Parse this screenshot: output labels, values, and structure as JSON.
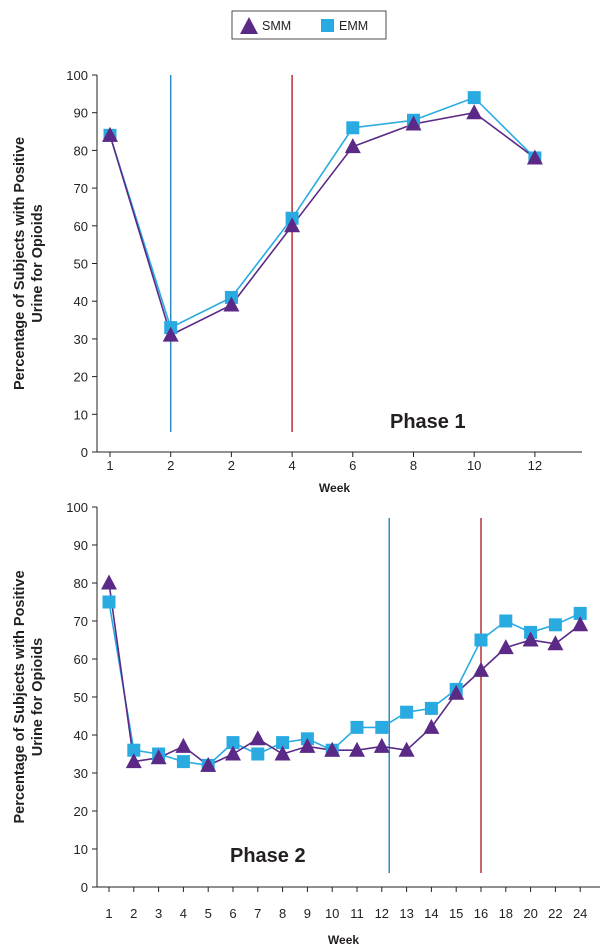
{
  "legend": {
    "items": [
      {
        "label": "SMM",
        "marker": "triangle",
        "color": "#5b2a86"
      },
      {
        "label": "EMM",
        "marker": "square",
        "color": "#29abe2"
      }
    ]
  },
  "chart_data": [
    {
      "type": "line",
      "title": "Phase 1",
      "xlabel": "Week",
      "ylabel": [
        "Percentage of Subjects with Positive",
        "Urine for Opioids"
      ],
      "categories": [
        "1",
        "2",
        "2",
        "4",
        "6",
        "8",
        "10",
        "12"
      ],
      "ylim": [
        0,
        100
      ],
      "yticks": [
        0,
        10,
        20,
        30,
        40,
        50,
        60,
        70,
        80,
        90,
        100
      ],
      "grid": false,
      "legend_position": "top-center",
      "series": [
        {
          "name": "SMM",
          "marker": "triangle",
          "color": "#5b2a86",
          "values": [
            84,
            31,
            39,
            60,
            81,
            87,
            90,
            78
          ]
        },
        {
          "name": "EMM",
          "marker": "square",
          "color": "#29abe2",
          "values": [
            84,
            33,
            41,
            62,
            86,
            88,
            94,
            78
          ]
        }
      ],
      "vertical_lines": [
        {
          "at_category_index": 1,
          "color": "#2b8cc4"
        },
        {
          "at_category_index": 3,
          "color": "#b5303a"
        }
      ]
    },
    {
      "type": "line",
      "title": "Phase 2",
      "xlabel": "Week",
      "ylabel": [
        "Percentage of Subjects with Positive",
        "Urine for Opioids"
      ],
      "categories": [
        "1",
        "2",
        "3",
        "4",
        "5",
        "6",
        "7",
        "8",
        "9",
        "10",
        "11",
        "12",
        "13",
        "14",
        "15",
        "16",
        "18",
        "20",
        "22",
        "24"
      ],
      "ylim": [
        0,
        100
      ],
      "yticks": [
        0,
        10,
        20,
        30,
        40,
        50,
        60,
        70,
        80,
        90,
        100
      ],
      "grid": false,
      "series": [
        {
          "name": "SMM",
          "marker": "triangle",
          "color": "#5b2a86",
          "values": [
            80,
            33,
            34,
            37,
            32,
            35,
            39,
            35,
            37,
            36,
            36,
            37,
            36,
            42,
            51,
            57,
            63,
            65,
            64,
            69
          ]
        },
        {
          "name": "EMM",
          "marker": "square",
          "color": "#29abe2",
          "values": [
            75,
            36,
            35,
            33,
            32,
            38,
            35,
            38,
            39,
            36,
            42,
            42,
            46,
            47,
            52,
            65,
            70,
            67,
            69,
            72
          ]
        }
      ],
      "vertical_lines": [
        {
          "at_category_index": 11.3,
          "color": "#2b8cc4"
        },
        {
          "at_category_index": 15,
          "color": "#b5303a"
        }
      ]
    }
  ]
}
